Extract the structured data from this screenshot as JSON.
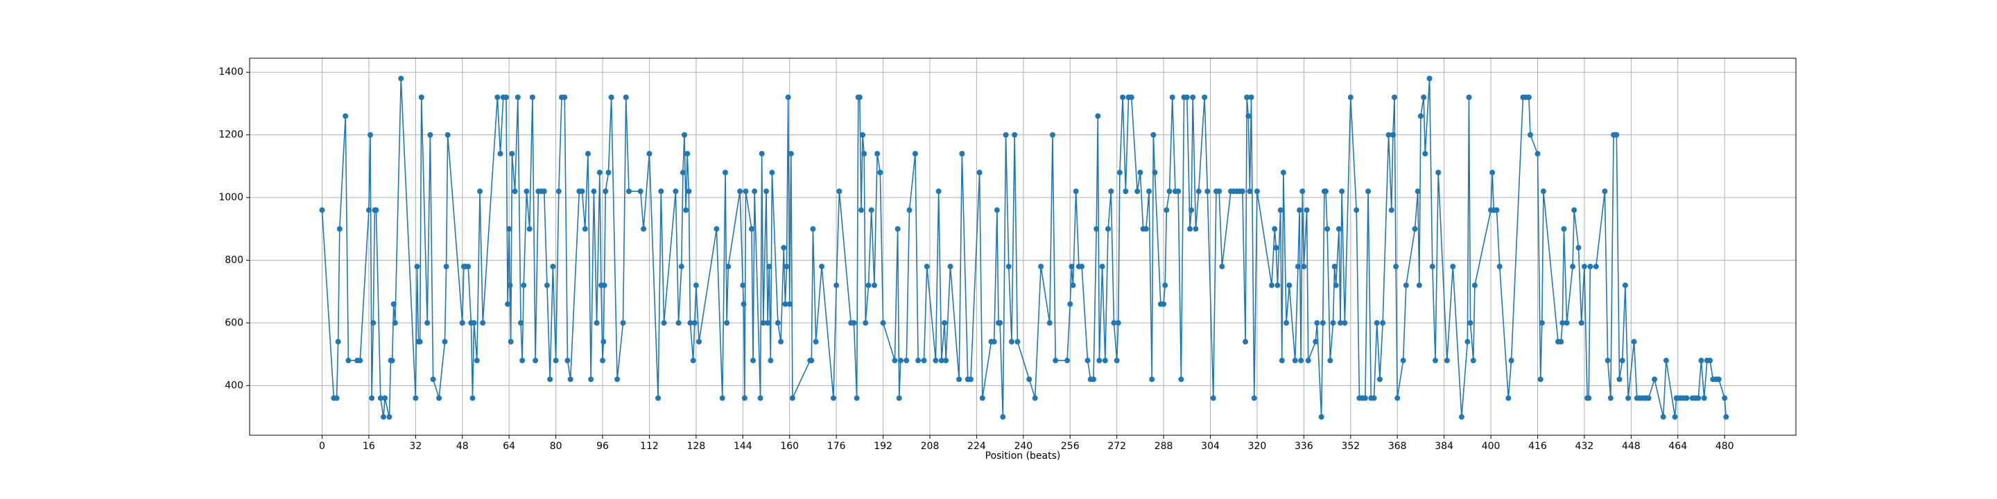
{
  "chart_data": {
    "type": "line",
    "xlabel": "Position (beats)",
    "color": "#1f77b4",
    "grid": true,
    "xlim": [
      -24.8,
      504.4
    ],
    "ylim": [
      241.5,
      1444.7
    ],
    "xticks": [
      0,
      16,
      32,
      48,
      64,
      80,
      96,
      112,
      128,
      144,
      160,
      176,
      192,
      208,
      224,
      240,
      256,
      272,
      288,
      304,
      320,
      336,
      352,
      368,
      384,
      400,
      416,
      432,
      448,
      464,
      480
    ],
    "yticks": [
      400,
      600,
      800,
      1000,
      1200,
      1400
    ],
    "x": [
      0,
      4,
      5,
      5.5,
      6,
      8,
      9,
      12,
      13,
      16,
      16.5,
      17,
      17.5,
      18,
      18.5,
      20,
      21,
      21.5,
      23,
      23.5,
      24,
      24.5,
      25,
      27,
      32,
      32.5,
      33,
      33.5,
      34,
      36,
      37,
      38,
      40,
      42,
      42.5,
      43,
      48,
      48.5,
      49,
      50,
      51,
      51.5,
      52,
      53,
      54,
      55,
      60,
      61,
      62,
      63,
      63.5,
      64,
      64.3,
      64.6,
      65,
      66,
      67,
      68,
      68.5,
      69,
      70,
      71,
      72,
      73,
      74,
      75,
      76,
      77,
      78,
      79,
      80,
      81,
      82,
      83,
      84,
      85,
      88,
      89,
      90,
      91,
      92,
      93,
      94,
      95,
      95.5,
      96,
      96.3,
      96.6,
      97,
      98,
      99,
      101,
      103,
      104,
      105,
      109,
      110,
      112,
      115,
      116,
      117,
      121,
      122,
      123,
      123.5,
      124,
      124.5,
      125,
      125.5,
      126,
      127,
      127.5,
      128,
      129,
      135,
      137,
      138,
      138.5,
      139,
      143,
      144,
      144.3,
      144.6,
      145,
      147,
      147.5,
      148,
      150,
      150.5,
      151,
      152,
      152.5,
      153,
      153.5,
      154,
      156,
      157,
      158,
      158.5,
      159,
      159.5,
      160,
      160.5,
      161,
      167,
      167.5,
      168,
      169,
      171,
      175,
      176,
      177,
      181,
      182,
      183,
      183.5,
      184,
      184.5,
      185,
      185.5,
      186,
      187,
      188,
      189,
      190,
      191,
      192,
      196,
      197,
      197.5,
      198,
      200,
      201,
      203,
      204,
      206,
      207,
      210,
      211,
      212,
      213,
      213.5,
      215,
      218,
      219,
      221,
      222,
      225,
      226,
      229,
      230,
      231,
      231.5,
      232,
      233,
      234,
      235,
      236,
      237,
      238,
      242,
      244,
      246,
      249,
      250,
      251,
      255,
      256,
      256.5,
      257,
      258,
      259,
      260,
      262,
      263,
      264,
      265,
      265.5,
      266,
      267,
      268,
      269,
      270,
      271,
      272,
      272.5,
      273,
      274,
      275,
      276,
      277,
      279,
      280,
      281,
      282,
      283,
      284,
      284.5,
      285,
      287,
      288,
      288.5,
      289,
      290,
      291,
      292,
      293,
      294,
      295,
      296,
      297,
      297.5,
      298,
      299,
      300,
      302,
      303,
      305,
      306,
      307,
      308,
      311,
      312,
      313,
      314,
      315,
      316,
      316.5,
      317,
      317.5,
      318,
      319,
      320,
      325,
      326,
      326.5,
      327,
      328,
      328.5,
      329,
      330,
      331,
      333,
      334,
      334.5,
      335,
      335.5,
      336,
      337,
      337.5,
      340,
      340.5,
      342,
      342.5,
      343,
      343.5,
      344,
      345,
      346,
      346.5,
      347,
      348,
      348.5,
      349,
      350,
      352,
      354,
      355,
      356,
      357,
      358,
      359,
      360,
      361,
      362,
      363,
      365,
      366,
      366.5,
      367,
      367.5,
      368,
      370,
      371,
      374,
      375,
      375.5,
      376,
      377,
      377.5,
      379,
      380,
      381,
      382,
      385,
      387,
      390,
      392,
      392.5,
      393,
      394,
      394.5,
      400,
      400.5,
      401,
      402,
      403,
      406,
      407,
      411,
      412,
      413,
      413.5,
      416,
      417,
      417.5,
      418,
      423,
      424,
      424.5,
      425,
      426,
      428,
      428.5,
      430,
      431,
      432,
      433,
      433.5,
      434,
      436,
      439,
      440,
      441,
      442,
      442.5,
      443,
      444,
      445,
      446,
      447,
      449,
      450,
      451,
      452,
      453,
      454,
      456,
      459,
      460,
      463,
      463.5,
      464,
      465,
      466,
      467,
      469,
      470,
      471,
      472,
      473,
      474,
      475,
      476,
      477,
      478,
      480,
      480.5
    ],
    "values": [
      960,
      360,
      360,
      540,
      900,
      1260,
      480,
      480,
      480,
      960,
      1200,
      360,
      600,
      960,
      960,
      360,
      300,
      360,
      300,
      480,
      480,
      660,
      600,
      1380,
      360,
      780,
      540,
      540,
      1320,
      600,
      1200,
      420,
      360,
      540,
      780,
      1200,
      600,
      780,
      780,
      780,
      600,
      360,
      600,
      480,
      1020,
      600,
      1320,
      1140,
      1320,
      1320,
      660,
      900,
      720,
      540,
      1140,
      1020,
      1320,
      600,
      480,
      720,
      1020,
      900,
      1320,
      480,
      1020,
      1020,
      1020,
      720,
      420,
      780,
      480,
      1020,
      1320,
      1320,
      480,
      420,
      1020,
      1020,
      900,
      1140,
      420,
      1020,
      600,
      1080,
      720,
      480,
      540,
      720,
      1020,
      1080,
      1320,
      420,
      600,
      1320,
      1020,
      1020,
      900,
      1140,
      360,
      1020,
      600,
      1020,
      600,
      780,
      1080,
      1200,
      960,
      1140,
      1020,
      600,
      480,
      600,
      720,
      540,
      900,
      360,
      1080,
      600,
      780,
      1020,
      720,
      660,
      360,
      1020,
      900,
      480,
      1020,
      360,
      1140,
      600,
      1020,
      600,
      780,
      480,
      1080,
      600,
      540,
      840,
      660,
      780,
      1320,
      660,
      1140,
      360,
      480,
      480,
      900,
      540,
      780,
      360,
      720,
      1020,
      600,
      600,
      360,
      1320,
      1320,
      960,
      1200,
      1140,
      600,
      720,
      960,
      720,
      1140,
      1080,
      600,
      480,
      900,
      360,
      480,
      480,
      960,
      1140,
      480,
      480,
      780,
      480,
      1020,
      480,
      600,
      480,
      780,
      420,
      1140,
      420,
      420,
      1080,
      360,
      540,
      540,
      960,
      600,
      600,
      300,
      1200,
      780,
      540,
      1200,
      540,
      420,
      360,
      780,
      600,
      1200,
      480,
      480,
      660,
      780,
      720,
      1020,
      780,
      780,
      480,
      420,
      420,
      900,
      1260,
      480,
      780,
      480,
      900,
      1020,
      600,
      480,
      600,
      1080,
      1320,
      1020,
      1320,
      1320,
      1020,
      1080,
      900,
      900,
      1020,
      420,
      1200,
      1080,
      660,
      660,
      720,
      960,
      1020,
      1320,
      1020,
      1020,
      420,
      1320,
      1320,
      900,
      960,
      1320,
      900,
      1020,
      1320,
      1020,
      360,
      1020,
      1020,
      780,
      1020,
      1020,
      1020,
      1020,
      1020,
      540,
      1320,
      1260,
      1020,
      1320,
      360,
      1020,
      720,
      900,
      840,
      720,
      960,
      480,
      1080,
      600,
      720,
      480,
      780,
      960,
      480,
      1020,
      780,
      960,
      480,
      540,
      600,
      300,
      600,
      1020,
      1020,
      900,
      480,
      600,
      780,
      720,
      900,
      600,
      1020,
      600,
      1320,
      960,
      360,
      360,
      360,
      1020,
      360,
      360,
      600,
      420,
      600,
      1200,
      960,
      1200,
      1320,
      780,
      360,
      480,
      720,
      900,
      1020,
      720,
      1260,
      1320,
      1140,
      1380,
      780,
      480,
      1080,
      480,
      780,
      300,
      540,
      1320,
      600,
      480,
      720,
      960,
      1080,
      960,
      960,
      780,
      360,
      480,
      1320,
      1320,
      1320,
      1200,
      1140,
      420,
      600,
      1020,
      540,
      540,
      600,
      900,
      600,
      780,
      960,
      840,
      600,
      780,
      360,
      360,
      780,
      780,
      1020,
      480,
      360,
      1200,
      1200,
      1200,
      420,
      480,
      720,
      360,
      540,
      360,
      360,
      360,
      360,
      360,
      420,
      300,
      480,
      300,
      360,
      360,
      360,
      360,
      360,
      360,
      360,
      360,
      480,
      360,
      480,
      480,
      420,
      420,
      420,
      360,
      300
    ]
  }
}
